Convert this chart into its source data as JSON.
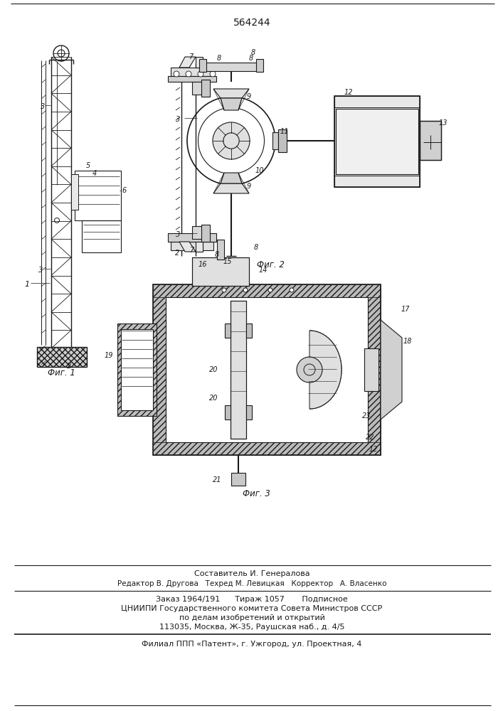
{
  "patent_number": "564244",
  "fig1_label": "Фиг. 1",
  "fig2_label": "Фиг. 2",
  "fig3_label": "Фиг. 3",
  "footer_line1": "Составитель И. Генералова",
  "footer_line2": "Редактор В. Другова   Техред М. Левицкая   Корректор   А. Власенко",
  "footer_line3": "Заказ 1964/191      Тираж 1057       Подписное",
  "footer_line4": "ЦНИИПИ Государственного комитета Совета Министров СССР",
  "footer_line5": "по делам изобретений и открытий",
  "footer_line6": "113035, Москва, Ж-35, Раушская наб., д. 4/5",
  "footer_line7": "Филиал ППП «Патент», г. Ужгород, ул. Проектная, 4",
  "bg_color": "#ffffff",
  "line_color": "#1a1a1a"
}
